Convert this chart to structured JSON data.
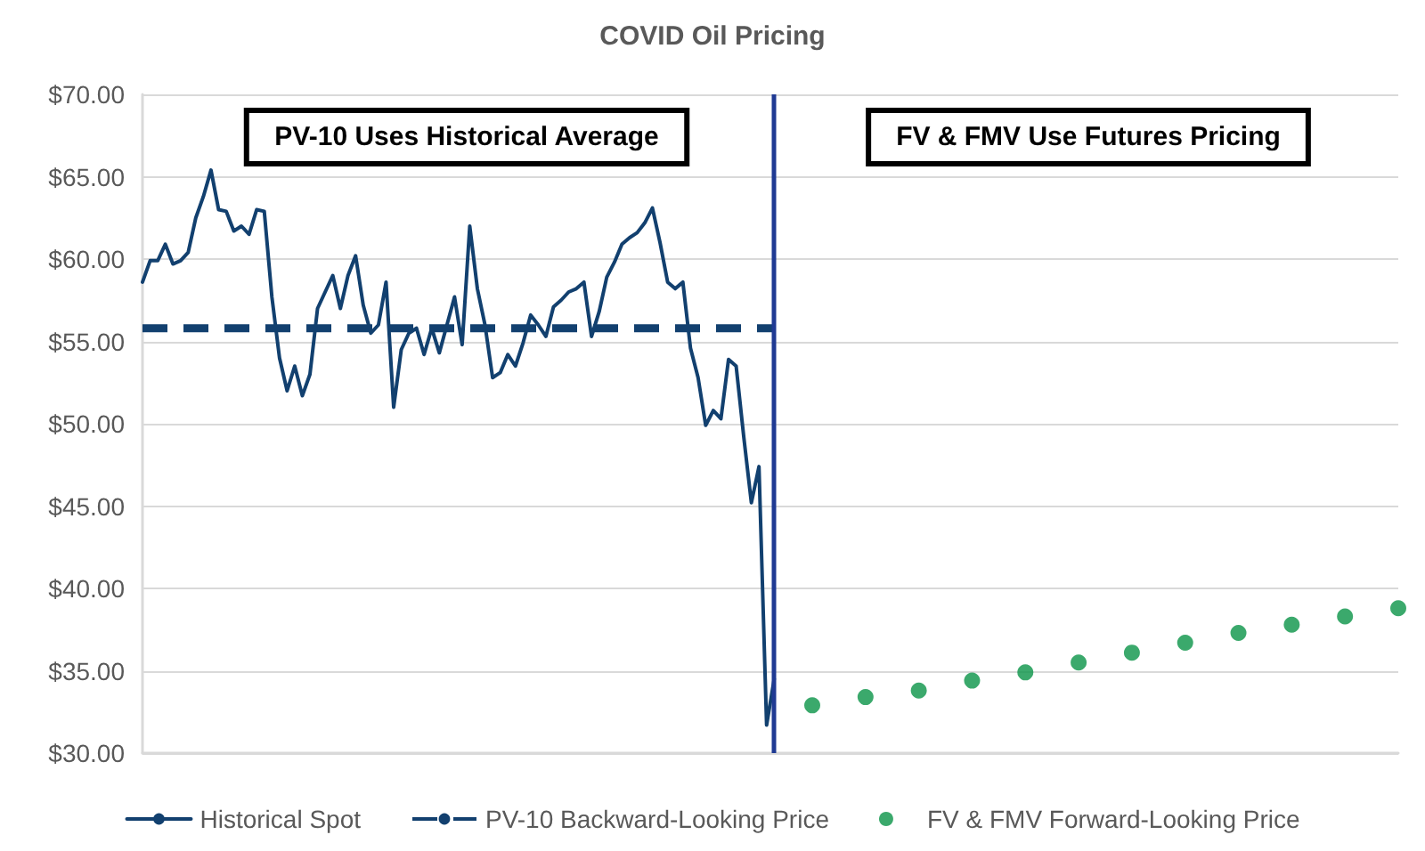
{
  "chart_data": {
    "type": "line",
    "title": "COVID Oil Pricing",
    "annotations": [
      "PV-10 Uses Historical Average",
      "FV & FMV Use Futures Pricing"
    ],
    "categories": [
      null,
      null,
      null,
      null,
      null,
      null,
      null,
      null,
      null,
      null,
      null,
      null,
      null,
      null,
      null,
      null,
      null,
      null,
      null,
      null,
      null,
      null,
      null,
      null,
      null,
      null,
      null,
      null,
      null,
      null,
      null,
      null,
      null,
      null,
      null,
      null,
      null,
      null,
      null,
      null,
      null,
      null,
      null,
      null,
      null,
      null,
      null,
      null,
      null,
      null,
      null,
      null,
      null,
      null,
      null,
      null,
      null,
      null,
      null,
      null,
      null,
      null,
      null,
      null,
      null,
      null,
      null,
      null,
      null,
      null,
      null,
      null,
      null,
      null,
      null,
      null,
      null,
      null,
      null,
      null,
      null,
      null,
      null,
      null,
      null,
      null,
      null,
      null,
      null,
      null,
      null,
      null,
      null,
      null,
      null,
      null,
      null,
      null,
      null,
      null,
      null,
      null,
      null,
      null,
      null,
      null,
      null,
      null,
      null,
      null,
      null,
      null,
      null,
      null,
      null,
      null,
      null,
      null,
      null,
      null,
      null,
      null,
      null,
      null,
      null,
      null,
      null,
      null,
      null,
      null,
      null,
      null,
      null,
      null,
      null,
      null,
      null,
      null,
      null,
      null,
      null,
      null,
      null,
      null,
      null,
      null,
      null,
      null,
      null,
      null,
      null,
      null,
      null,
      null,
      null,
      null,
      null,
      null,
      null,
      null,
      null,
      null,
      null,
      null,
      null,
      null
    ],
    "series": [
      {
        "name": "Historical Spot",
        "color": "#12406f",
        "values": [
          58.6,
          59.9,
          59.9,
          60.9,
          59.7,
          59.9,
          60.4,
          62.5,
          63.8,
          65.4,
          63.0,
          62.9,
          61.7,
          62.0,
          61.5,
          63.0,
          62.9,
          57.7,
          54.0,
          52.0,
          53.5,
          51.7,
          53.0,
          57.0,
          58.0,
          59.0,
          57.0,
          59.0,
          60.2,
          57.2,
          55.5,
          56.0,
          58.6,
          51.0,
          54.5,
          55.5,
          55.8,
          54.2,
          55.8,
          54.3,
          56.0,
          57.7,
          54.8,
          62.0,
          58.2,
          56.0,
          52.8,
          53.1,
          54.2,
          53.5,
          54.9,
          56.6,
          56.0,
          55.3,
          57.1,
          57.5,
          58.0,
          58.2,
          58.6,
          55.3,
          56.8,
          58.9,
          59.8,
          60.9,
          61.3,
          61.6,
          62.2,
          63.1,
          61.0,
          58.6,
          58.2,
          58.6,
          54.6,
          52.8,
          49.9,
          50.8,
          50.3,
          53.9,
          53.5,
          49.2,
          45.2,
          47.4,
          31.7,
          34.5,
          null,
          null,
          null,
          null,
          null,
          null,
          null,
          null,
          null,
          null,
          null,
          null,
          null,
          null,
          null,
          null,
          null,
          null,
          null,
          null,
          null,
          null,
          null,
          null,
          null,
          null,
          null,
          null,
          null,
          null,
          null,
          null,
          null,
          null,
          null,
          null,
          null,
          null,
          null,
          null,
          null,
          null,
          null,
          null,
          null,
          null,
          null,
          null,
          null,
          null,
          null,
          null,
          null,
          null,
          null,
          null,
          null,
          null,
          null,
          null,
          null,
          null,
          null,
          null,
          null,
          null,
          null,
          null,
          null,
          null,
          null,
          null,
          null,
          null,
          null,
          null,
          null,
          null,
          null,
          null,
          null,
          null
        ]
      },
      {
        "name": "PV-10 Backward-Looking Price",
        "color": "#12406f",
        "line_style": "dashed",
        "values": [
          55.8,
          55.8,
          55.8,
          55.8,
          55.8,
          55.8,
          55.8,
          55.8,
          55.8,
          55.8,
          55.8,
          55.8,
          55.8,
          55.8,
          55.8,
          55.8,
          55.8,
          55.8,
          55.8,
          55.8,
          55.8,
          55.8,
          55.8,
          55.8,
          55.8,
          55.8,
          55.8,
          55.8,
          55.8,
          55.8,
          55.8,
          55.8,
          55.8,
          55.8,
          55.8,
          55.8,
          55.8,
          55.8,
          55.8,
          55.8,
          55.8,
          55.8,
          55.8,
          55.8,
          55.8,
          55.8,
          55.8,
          55.8,
          55.8,
          55.8,
          55.8,
          55.8,
          55.8,
          55.8,
          55.8,
          55.8,
          55.8,
          55.8,
          55.8,
          55.8,
          55.8,
          55.8,
          55.8,
          55.8,
          55.8,
          55.8,
          55.8,
          55.8,
          55.8,
          55.8,
          55.8,
          55.8,
          55.8,
          55.8,
          55.8,
          55.8,
          55.8,
          55.8,
          55.8,
          55.8,
          55.8,
          55.8,
          55.8,
          55.8,
          null,
          null,
          null,
          null,
          null,
          null,
          null,
          null,
          null,
          null,
          null,
          null,
          null,
          null,
          null,
          null,
          null,
          null,
          null,
          null,
          null,
          null,
          null,
          null,
          null,
          null,
          null,
          null,
          null,
          null,
          null,
          null,
          null,
          null,
          null,
          null,
          null,
          null,
          null,
          null,
          null,
          null,
          null,
          null,
          null,
          null,
          null,
          null,
          null,
          null,
          null,
          null,
          null,
          null,
          null,
          null,
          null,
          null,
          null,
          null,
          null,
          null,
          null,
          null,
          null,
          null,
          null,
          null,
          null,
          null,
          null,
          null,
          null,
          null,
          null,
          null,
          null,
          null,
          null,
          null,
          null,
          null
        ]
      },
      {
        "name": "FV & FMV Forward-Looking Price",
        "color": "#0a9447",
        "type": "scatter",
        "marker": "circle",
        "values": [
          null,
          null,
          null,
          null,
          null,
          null,
          null,
          null,
          null,
          null,
          null,
          null,
          null,
          null,
          null,
          null,
          null,
          null,
          null,
          null,
          null,
          null,
          null,
          null,
          null,
          null,
          null,
          null,
          null,
          null,
          null,
          null,
          null,
          null,
          null,
          null,
          null,
          null,
          null,
          null,
          null,
          null,
          null,
          null,
          null,
          null,
          null,
          null,
          null,
          null,
          null,
          null,
          null,
          null,
          null,
          null,
          null,
          null,
          null,
          null,
          null,
          null,
          null,
          null,
          null,
          null,
          null,
          null,
          null,
          null,
          null,
          null,
          null,
          null,
          null,
          null,
          null,
          null,
          null,
          null,
          null,
          null,
          null,
          null,
          null,
          null,
          null,
          null,
          32.9,
          null,
          null,
          null,
          null,
          null,
          null,
          33.4,
          null,
          null,
          null,
          null,
          null,
          null,
          33.8,
          null,
          null,
          null,
          null,
          null,
          null,
          34.4,
          null,
          null,
          null,
          null,
          null,
          null,
          34.9,
          null,
          null,
          null,
          null,
          null,
          null,
          35.5,
          null,
          null,
          null,
          null,
          null,
          null,
          36.1,
          null,
          null,
          null,
          null,
          null,
          null,
          36.7,
          null,
          null,
          null,
          null,
          null,
          null,
          37.3,
          null,
          null,
          null,
          null,
          null,
          null,
          37.8,
          null,
          null,
          null,
          null,
          null,
          null,
          38.3,
          null,
          null,
          null,
          null,
          null,
          null,
          38.8
        ]
      }
    ],
    "ylim": [
      30,
      70
    ],
    "yticks": [
      {
        "value": 30,
        "label": "$30.00"
      },
      {
        "value": 35,
        "label": "$35.00"
      },
      {
        "value": 40,
        "label": "$40.00"
      },
      {
        "value": 45,
        "label": "$45.00"
      },
      {
        "value": 50,
        "label": "$50.00"
      },
      {
        "value": 55,
        "label": "$55.00"
      },
      {
        "value": 60,
        "label": "$60.00"
      },
      {
        "value": 65,
        "label": "$65.00"
      },
      {
        "value": 70,
        "label": "$70.00"
      }
    ],
    "grid": "y",
    "legend": "bottom",
    "tick_labels": "y"
  }
}
